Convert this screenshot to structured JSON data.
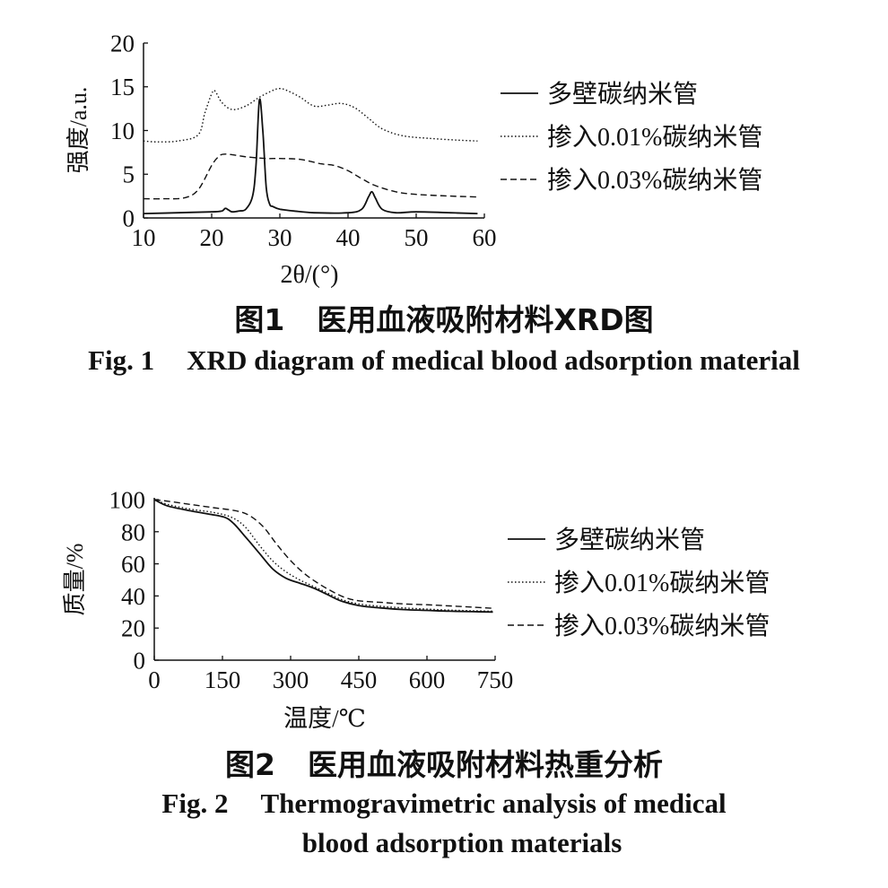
{
  "figures": [
    {
      "caption_cn_num": "图1",
      "caption_cn_text": "医用血液吸附材料XRD图",
      "caption_en_num": "Fig. 1",
      "caption_en_text": "XRD diagram of medical blood adsorption material"
    },
    {
      "caption_cn_num": "图2",
      "caption_cn_text": "医用血液吸附材料热重分析",
      "caption_en_num": "Fig. 2",
      "caption_en_line1": "Thermogravimetric analysis of medical",
      "caption_en_line2": "blood adsorption materials"
    }
  ],
  "chart_data": [
    {
      "type": "line",
      "xlabel": "2θ/(°)",
      "ylabel": "强度/a.u.",
      "xlim": [
        10,
        60
      ],
      "ylim": [
        0,
        20
      ],
      "xticks": [
        "10",
        "20",
        "30",
        "40",
        "50",
        "60"
      ],
      "yticks": [
        "0",
        "5",
        "10",
        "15",
        "20"
      ],
      "xtick_values": [
        10,
        20,
        30,
        40,
        50,
        60
      ],
      "ytick_values": [
        0,
        5,
        10,
        15,
        20
      ],
      "grid": false,
      "legend_position": "right",
      "series": [
        {
          "name": "多壁碳纳米管",
          "style": "solid",
          "x": [
            10,
            15,
            20,
            21.5,
            22,
            22.5,
            23,
            24,
            25,
            26,
            26.5,
            27,
            27.5,
            28,
            28.5,
            29,
            30,
            32,
            35,
            40,
            42,
            43,
            43.5,
            44,
            45,
            47,
            50,
            55,
            59
          ],
          "y": [
            0.5,
            0.6,
            0.7,
            0.8,
            1.1,
            0.9,
            0.7,
            0.8,
            1.0,
            2.5,
            6.0,
            13.5,
            10.0,
            3.5,
            1.6,
            1.3,
            1.0,
            0.8,
            0.6,
            0.6,
            1.0,
            2.4,
            3.0,
            2.3,
            1.0,
            0.6,
            0.7,
            0.6,
            0.5
          ]
        },
        {
          "name": "掺入0.01%碳纳米管",
          "style": "dotted",
          "x": [
            10,
            12,
            15,
            18,
            19,
            20,
            20.5,
            21.5,
            23,
            25,
            27,
            29,
            30,
            31,
            33,
            35,
            37,
            39,
            41,
            43,
            45,
            48,
            52,
            56,
            59
          ],
          "y": [
            8.8,
            8.7,
            8.8,
            9.5,
            12.0,
            14.2,
            14.5,
            13.2,
            12.4,
            12.8,
            13.8,
            14.6,
            14.8,
            14.6,
            13.8,
            12.8,
            12.9,
            13.1,
            12.6,
            11.4,
            10.2,
            9.4,
            9.1,
            8.9,
            8.8
          ]
        },
        {
          "name": "掺入0.03%碳纳米管",
          "style": "dashed",
          "x": [
            10,
            13,
            16,
            18,
            20,
            21,
            22,
            25,
            28,
            30,
            33,
            36,
            38,
            40,
            42,
            44,
            47,
            50,
            55,
            59
          ],
          "y": [
            2.2,
            2.2,
            2.3,
            3.2,
            6.0,
            7.0,
            7.3,
            7.0,
            6.8,
            6.8,
            6.7,
            6.2,
            6.0,
            5.4,
            4.5,
            3.7,
            3.0,
            2.7,
            2.5,
            2.4
          ]
        }
      ]
    },
    {
      "type": "line",
      "xlabel": "温度/℃",
      "ylabel": "质量/%",
      "xlim": [
        0,
        750
      ],
      "ylim": [
        0,
        100
      ],
      "xticks": [
        "0",
        "150",
        "300",
        "450",
        "600",
        "750"
      ],
      "yticks": [
        "0",
        "20",
        "40",
        "60",
        "80",
        "100"
      ],
      "xtick_values": [
        0,
        150,
        300,
        450,
        600,
        750
      ],
      "ytick_values": [
        0,
        20,
        40,
        60,
        80,
        100
      ],
      "grid": false,
      "legend_position": "right",
      "series": [
        {
          "name": "多壁碳纳米管",
          "style": "solid",
          "x": [
            0,
            30,
            80,
            120,
            155,
            175,
            200,
            230,
            260,
            290,
            320,
            350,
            380,
            410,
            450,
            500,
            550,
            600,
            650,
            700,
            745
          ],
          "y": [
            100,
            96,
            93,
            91,
            89,
            85,
            77,
            67,
            57,
            51,
            48,
            45,
            41,
            37,
            34,
            32.5,
            31.5,
            31,
            30.5,
            30.2,
            30
          ]
        },
        {
          "name": "掺入0.01%碳纳米管",
          "style": "dotted",
          "x": [
            0,
            30,
            80,
            130,
            170,
            200,
            230,
            260,
            290,
            320,
            350,
            380,
            410,
            450,
            500,
            550,
            600,
            650,
            700,
            745
          ],
          "y": [
            100,
            97,
            94,
            92,
            89,
            83,
            72,
            62,
            55,
            50,
            46,
            42,
            38,
            35,
            33.5,
            32.5,
            31.8,
            31.2,
            30.8,
            30.5
          ]
        },
        {
          "name": "掺入0.03%碳纳米管",
          "style": "dashed",
          "x": [
            0,
            30,
            80,
            130,
            180,
            210,
            240,
            270,
            300,
            330,
            360,
            390,
            420,
            450,
            500,
            550,
            600,
            650,
            700,
            745
          ],
          "y": [
            100,
            99,
            97,
            95,
            93,
            90,
            83,
            72,
            62,
            54,
            48,
            43,
            39,
            37,
            36,
            35,
            34.5,
            33.8,
            33,
            32.3
          ]
        }
      ]
    }
  ]
}
